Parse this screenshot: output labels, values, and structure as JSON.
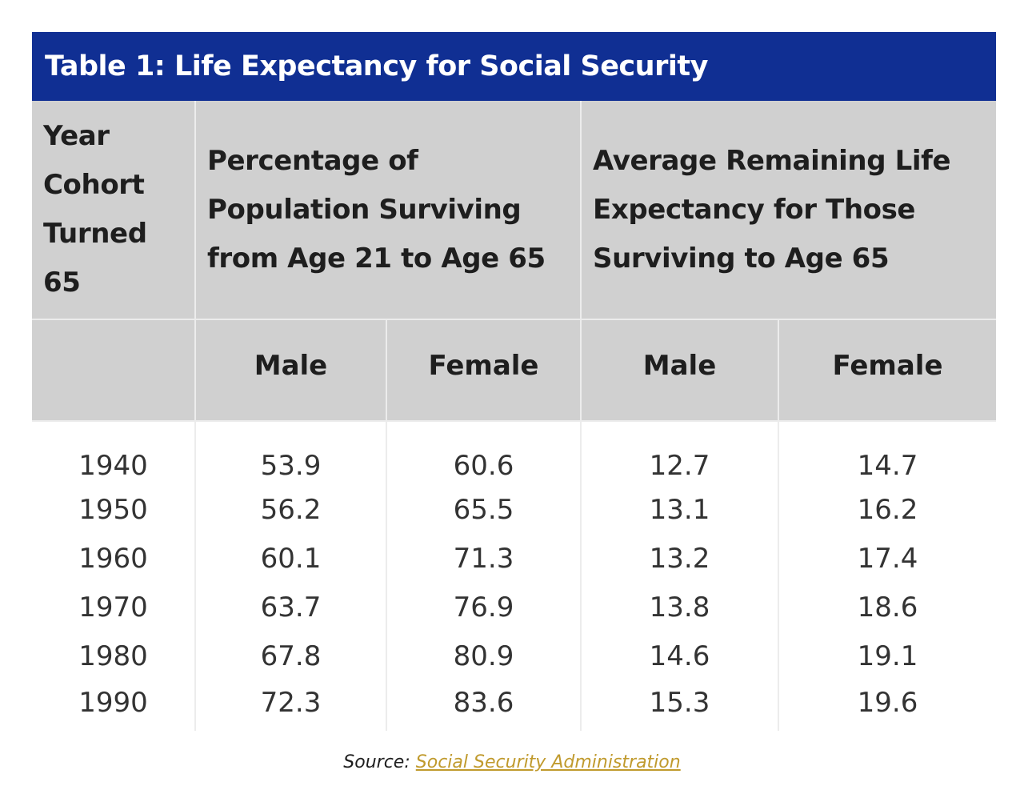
{
  "chart_data": {
    "type": "table",
    "title": "Table 1: Life Expectancy for Social Security",
    "header_groups": [
      "Year Cohort Turned 65",
      "Percentage of Population Surviving from Age 21 to Age 65",
      "Average Remaining Life Expectancy for Those Surviving to Age 65"
    ],
    "sub_headers": [
      "Male",
      "Female",
      "Male",
      "Female"
    ],
    "rows": [
      [
        "1940",
        "53.9",
        "60.6",
        "12.7",
        "14.7"
      ],
      [
        "1950",
        "56.2",
        "65.5",
        "13.1",
        "16.2"
      ],
      [
        "1960",
        "60.1",
        "71.3",
        "13.2",
        "17.4"
      ],
      [
        "1970",
        "63.7",
        "76.9",
        "13.8",
        "18.6"
      ],
      [
        "1980",
        "67.8",
        "80.9",
        "14.6",
        "19.1"
      ],
      [
        "1990",
        "72.3",
        "83.6",
        "15.3",
        "19.6"
      ]
    ]
  },
  "source": {
    "prefix": "Source:",
    "link_text": "Social Security Administration"
  },
  "colors": {
    "title_bg": "#102f93",
    "header_bg": "#d0d0d0",
    "link": "#c09a2d"
  }
}
